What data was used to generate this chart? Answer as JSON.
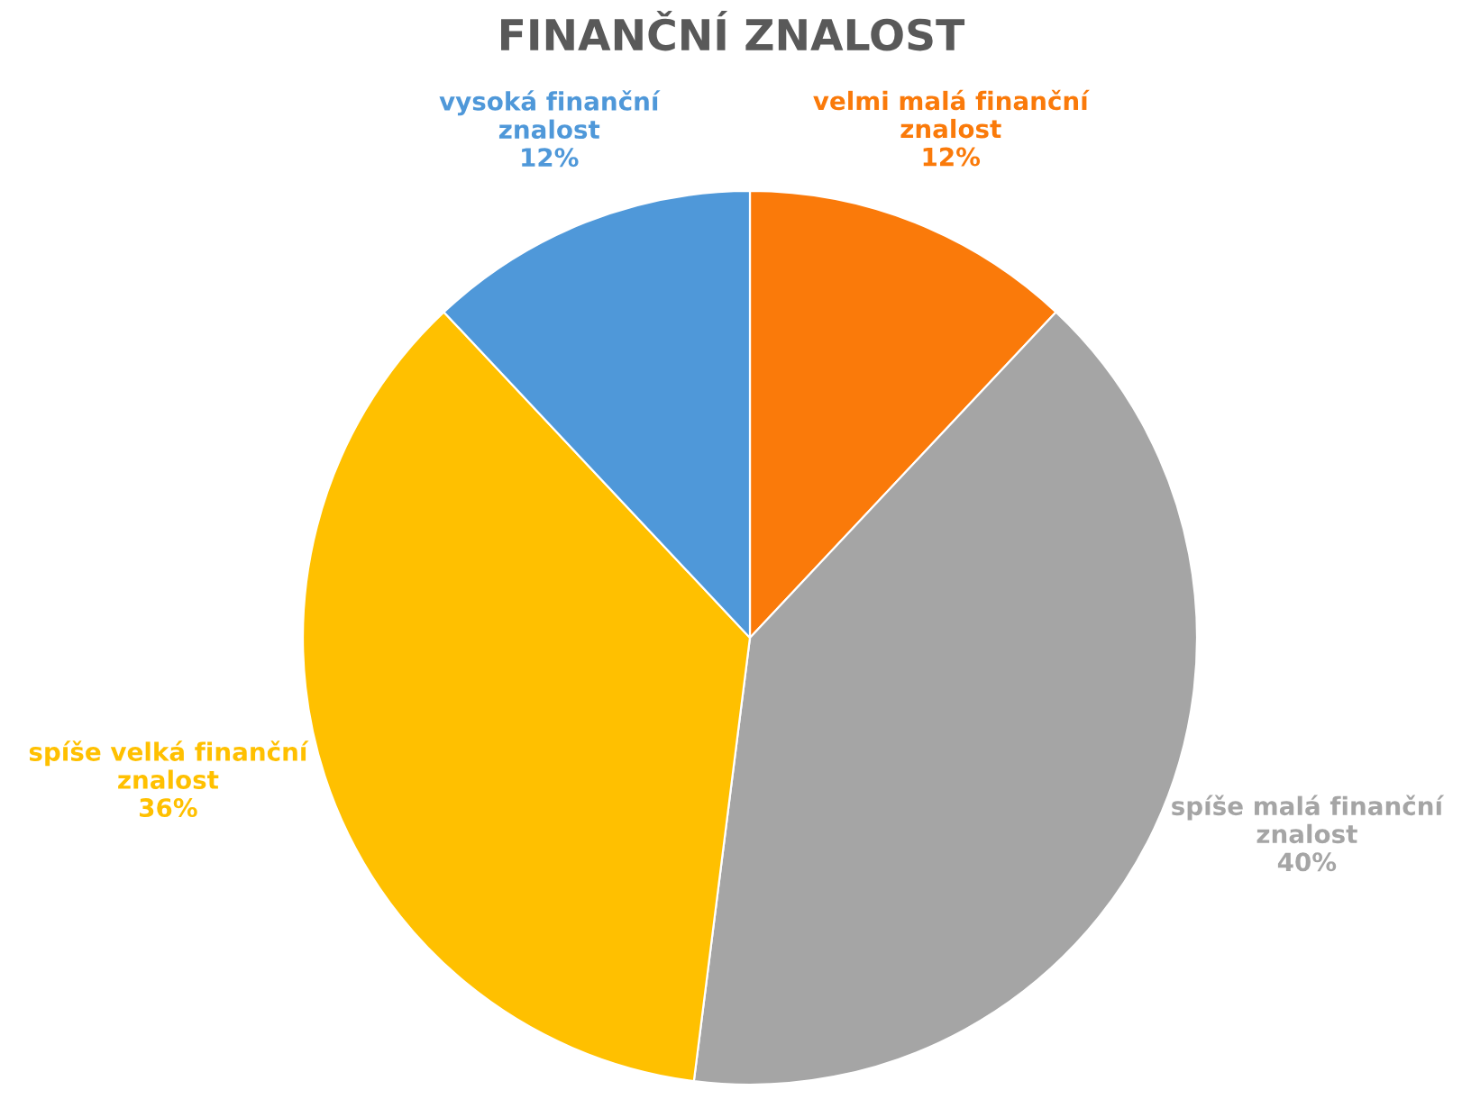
{
  "chart_data": {
    "type": "pie",
    "title": "FINANČNÍ ZNALOST",
    "categories": [
      "velmi malá finanční znalost",
      "spíše malá finanční znalost",
      "spíše velká finanční znalost",
      "vysoká finanční znalost"
    ],
    "values": [
      12,
      40,
      36,
      12
    ],
    "colors": [
      "#fa7a0a",
      "#a5a5a5",
      "#ffc000",
      "#4f98d9"
    ],
    "value_labels": [
      "12%",
      "40%",
      "36%",
      "12%"
    ]
  }
}
